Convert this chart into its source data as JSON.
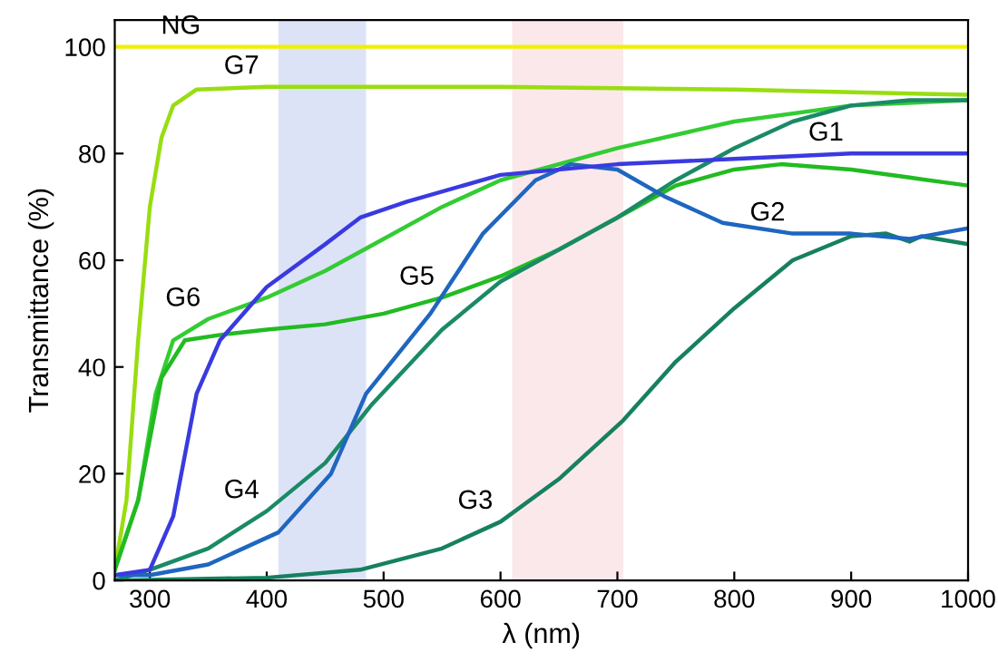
{
  "chart_data": {
    "type": "line",
    "xlabel": "λ (nm)",
    "ylabel": "Transmittance (%)",
    "xlim": [
      270,
      1000
    ],
    "ylim": [
      0,
      105
    ],
    "xticks": [
      300,
      400,
      500,
      600,
      700,
      800,
      900,
      1000
    ],
    "yticks": [
      0,
      20,
      40,
      60,
      80,
      100
    ],
    "grid": false,
    "legend": false,
    "bands": [
      {
        "axis": "x",
        "from": 410,
        "to": 485,
        "color": "#dde3f7"
      },
      {
        "axis": "x",
        "from": 610,
        "to": 705,
        "color": "#fbe8ea"
      }
    ],
    "series": [
      {
        "color": "#f0f000",
        "x": [
          270,
          1000
        ],
        "values": [
          100,
          100
        ]
      },
      {
        "color": "#99dd11",
        "x": [
          270,
          280,
          290,
          300,
          310,
          320,
          340,
          400,
          600,
          800,
          1000
        ],
        "values": [
          2,
          15,
          45,
          70,
          83,
          89,
          92,
          92.5,
          92.5,
          92,
          91
        ]
      },
      {
        "color": "#33cc33",
        "x": [
          270,
          290,
          305,
          320,
          350,
          400,
          450,
          500,
          550,
          600,
          700,
          800,
          900,
          1000
        ],
        "values": [
          2,
          15,
          35,
          45,
          49,
          53,
          58,
          64,
          70,
          75,
          81,
          86,
          89,
          90
        ]
      },
      {
        "color": "#22bb22",
        "x": [
          270,
          290,
          310,
          330,
          360,
          400,
          450,
          500,
          550,
          600,
          650,
          700,
          750,
          800,
          840,
          900,
          950,
          1000
        ],
        "values": [
          2,
          15,
          38,
          45,
          46,
          47,
          48,
          50,
          53,
          57,
          62,
          68,
          74,
          77,
          78,
          77,
          75.5,
          74
        ]
      },
      {
        "color": "#1a8a66",
        "x": [
          270,
          300,
          350,
          400,
          450,
          490,
          550,
          600,
          650,
          700,
          750,
          800,
          850,
          900,
          950,
          1000
        ],
        "values": [
          0,
          2,
          6,
          13,
          22,
          33,
          47,
          56,
          62,
          68,
          75,
          81,
          86,
          89,
          90,
          90
        ]
      },
      {
        "color": "#168060",
        "x": [
          270,
          400,
          480,
          550,
          600,
          650,
          705,
          750,
          800,
          850,
          900,
          930,
          950,
          960,
          1000
        ],
        "values": [
          0,
          0.5,
          2,
          6,
          11,
          19,
          30,
          41,
          51,
          60,
          64.5,
          65,
          63.5,
          64.5,
          63
        ]
      },
      {
        "color": "#1f66c0",
        "x": [
          270,
          300,
          350,
          410,
          455,
          485,
          540,
          585,
          630,
          660,
          700,
          740,
          790,
          850,
          900,
          950,
          1000
        ],
        "values": [
          1,
          1,
          3,
          9,
          20,
          35,
          50,
          65,
          75,
          78,
          77,
          72,
          67,
          65,
          65,
          64,
          66
        ]
      },
      {
        "color": "#3a3ae0",
        "x": [
          270,
          300,
          320,
          340,
          360,
          400,
          450,
          480,
          520,
          600,
          700,
          800,
          900,
          1000
        ],
        "values": [
          1,
          2,
          12,
          35,
          45,
          55,
          63,
          68,
          71,
          76,
          78,
          79,
          80,
          80
        ]
      }
    ],
    "annotations": [
      {
        "text": "NG",
        "x": 350,
        "y": 100
      },
      {
        "text": "G7",
        "x": 400,
        "y": 92.5
      },
      {
        "text": "G6",
        "x": 350,
        "y": 49
      },
      {
        "text": "G5",
        "x": 550,
        "y": 53
      },
      {
        "text": "G4",
        "x": 400,
        "y": 13
      },
      {
        "text": "G3",
        "x": 600,
        "y": 11
      },
      {
        "text": "G1",
        "x": 900,
        "y": 80
      },
      {
        "text": "G2",
        "x": 850,
        "y": 65
      }
    ]
  }
}
